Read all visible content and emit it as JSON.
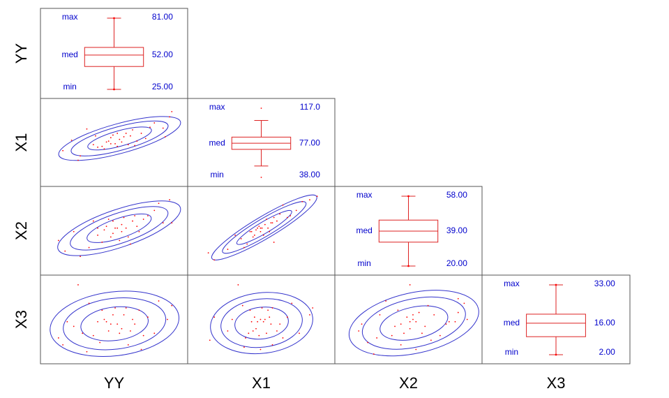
{
  "chart_data": {
    "type": "scatter",
    "layout": "lower-triangular scatterplot matrix with box plots on the diagonal",
    "variables": [
      "YY",
      "X1",
      "X2",
      "X3"
    ],
    "row_labels": [
      "YY",
      "X1",
      "X2",
      "X3"
    ],
    "column_labels": [
      "YY",
      "X1",
      "X2",
      "X3"
    ],
    "diagonal_boxplots": [
      {
        "variable": "YY",
        "max_label": "max",
        "med_label": "med",
        "min_label": "min",
        "max": "81.00",
        "median": "52.00",
        "min": "25.00",
        "q1": 43,
        "q3": 58
      },
      {
        "variable": "X1",
        "max_label": "max",
        "med_label": "med",
        "min_label": "min",
        "max": "117.0",
        "median": "77.00",
        "min": "38.00",
        "q1": 70,
        "q3": 84,
        "whisker_low": 51,
        "whisker_high": 103
      },
      {
        "variable": "X2",
        "max_label": "max",
        "med_label": "med",
        "min_label": "min",
        "max": "58.00",
        "median": "39.00",
        "min": "20.00",
        "q1": 33,
        "q3": 45
      },
      {
        "variable": "X3",
        "max_label": "max",
        "med_label": "med",
        "min_label": "min",
        "max": "33.00",
        "median": "16.00",
        "min": "2.00",
        "q1": 10,
        "q3": 20
      }
    ],
    "scatter_panels": [
      {
        "x": "YY",
        "y": "X1",
        "orientation": "positive correlation",
        "points": [
          [
            29,
            68
          ],
          [
            33,
            80
          ],
          [
            36,
            57
          ],
          [
            37,
            62
          ],
          [
            40,
            93
          ],
          [
            44,
            85
          ],
          [
            47,
            73
          ],
          [
            48,
            70
          ],
          [
            49,
            78
          ],
          [
            50,
            79
          ],
          [
            51,
            76
          ],
          [
            51,
            83
          ],
          [
            52,
            86
          ],
          [
            53,
            76
          ],
          [
            54,
            88
          ],
          [
            54,
            73
          ],
          [
            55,
            81
          ],
          [
            56,
            78
          ],
          [
            57,
            84
          ],
          [
            58,
            88
          ],
          [
            59,
            75
          ],
          [
            61,
            92
          ],
          [
            62,
            74
          ],
          [
            65,
            88
          ],
          [
            67,
            82
          ],
          [
            69,
            95
          ],
          [
            71,
            100
          ],
          [
            75,
            94
          ],
          [
            78,
            107
          ],
          [
            79,
            113
          ],
          [
            76,
            84
          ],
          [
            45,
            72
          ],
          [
            60,
            85
          ],
          [
            63,
            79
          ],
          [
            43,
            75
          ]
        ]
      },
      {
        "x": "YY",
        "y": "X2",
        "orientation": "positive correlation",
        "points": [
          [
            27,
            33
          ],
          [
            30,
            27
          ],
          [
            34,
            38
          ],
          [
            37,
            24
          ],
          [
            41,
            29
          ],
          [
            43,
            44
          ],
          [
            45,
            36
          ],
          [
            47,
            32
          ],
          [
            48,
            39
          ],
          [
            49,
            41
          ],
          [
            51,
            35
          ],
          [
            52,
            37
          ],
          [
            52,
            44
          ],
          [
            53,
            40
          ],
          [
            54,
            40
          ],
          [
            55,
            33
          ],
          [
            56,
            42
          ],
          [
            56,
            38
          ],
          [
            57,
            46
          ],
          [
            58,
            40
          ],
          [
            59,
            35
          ],
          [
            60,
            31
          ],
          [
            61,
            44
          ],
          [
            62,
            47
          ],
          [
            64,
            38
          ],
          [
            66,
            45
          ],
          [
            68,
            47
          ],
          [
            71,
            50
          ],
          [
            73,
            54
          ],
          [
            75,
            43
          ],
          [
            78,
            56
          ],
          [
            79,
            43
          ],
          [
            45,
            40
          ],
          [
            50,
            45
          ],
          [
            63,
            41
          ]
        ]
      },
      {
        "x": "YY",
        "y": "X3",
        "orientation": "weak correlation",
        "points": [
          [
            27,
            10
          ],
          [
            29,
            7
          ],
          [
            31,
            17
          ],
          [
            34,
            15
          ],
          [
            36,
            33
          ],
          [
            38,
            12
          ],
          [
            41,
            25
          ],
          [
            43,
            11
          ],
          [
            45,
            17
          ],
          [
            47,
            22
          ],
          [
            48,
            18
          ],
          [
            49,
            17
          ],
          [
            50,
            13
          ],
          [
            51,
            16
          ],
          [
            52,
            20
          ],
          [
            53,
            23
          ],
          [
            54,
            16
          ],
          [
            55,
            12
          ],
          [
            56,
            14
          ],
          [
            57,
            20
          ],
          [
            58,
            23
          ],
          [
            60,
            13
          ],
          [
            61,
            18
          ],
          [
            62,
            16
          ],
          [
            64,
            22
          ],
          [
            66,
            11
          ],
          [
            68,
            19
          ],
          [
            71,
            12
          ],
          [
            73,
            26
          ],
          [
            77,
            18
          ],
          [
            79,
            24
          ],
          [
            46,
            8
          ],
          [
            59,
            7
          ],
          [
            65,
            5
          ],
          [
            40,
            4
          ]
        ]
      },
      {
        "x": "X1",
        "y": "X2",
        "orientation": "positive correlation",
        "points": [
          [
            42,
            26
          ],
          [
            46,
            22
          ],
          [
            55,
            28
          ],
          [
            60,
            36
          ],
          [
            64,
            34
          ],
          [
            66,
            29
          ],
          [
            68,
            31
          ],
          [
            70,
            38
          ],
          [
            71,
            38
          ],
          [
            72,
            35
          ],
          [
            73,
            36
          ],
          [
            74,
            39
          ],
          [
            75,
            40
          ],
          [
            76,
            41
          ],
          [
            77,
            38
          ],
          [
            78,
            40
          ],
          [
            79,
            36
          ],
          [
            80,
            42
          ],
          [
            81,
            45
          ],
          [
            82,
            40
          ],
          [
            83,
            38
          ],
          [
            84,
            43
          ],
          [
            85,
            43
          ],
          [
            86,
            46
          ],
          [
            88,
            44
          ],
          [
            90,
            48
          ],
          [
            92,
            53
          ],
          [
            95,
            46
          ],
          [
            97,
            47
          ],
          [
            101,
            50
          ],
          [
            105,
            55
          ],
          [
            110,
            56
          ],
          [
            115,
            58
          ],
          [
            77,
            40
          ],
          [
            86,
            32
          ]
        ]
      },
      {
        "x": "X1",
        "y": "X3",
        "orientation": "weak correlation",
        "points": [
          [
            43,
            9
          ],
          [
            46,
            19
          ],
          [
            55,
            13
          ],
          [
            58,
            18
          ],
          [
            62,
            33
          ],
          [
            65,
            24
          ],
          [
            67,
            10
          ],
          [
            69,
            12
          ],
          [
            70,
            22
          ],
          [
            71,
            17
          ],
          [
            72,
            13
          ],
          [
            73,
            19
          ],
          [
            74,
            14
          ],
          [
            75,
            17
          ],
          [
            76,
            11
          ],
          [
            77,
            18
          ],
          [
            78,
            23
          ],
          [
            79,
            17
          ],
          [
            80,
            18
          ],
          [
            81,
            12
          ],
          [
            82,
            22
          ],
          [
            83,
            19
          ],
          [
            84,
            16
          ],
          [
            85,
            23
          ],
          [
            88,
            13
          ],
          [
            90,
            16
          ],
          [
            92,
            10
          ],
          [
            95,
            19
          ],
          [
            98,
            25
          ],
          [
            103,
            12
          ],
          [
            110,
            20
          ],
          [
            112,
            23
          ],
          [
            77,
            5
          ],
          [
            85,
            7
          ],
          [
            66,
            6
          ]
        ]
      },
      {
        "x": "X2",
        "y": "X3",
        "orientation": "weak correlation",
        "points": [
          [
            22,
            13
          ],
          [
            23,
            16
          ],
          [
            25,
            8
          ],
          [
            28,
            10
          ],
          [
            29,
            20
          ],
          [
            31,
            26
          ],
          [
            33,
            11
          ],
          [
            34,
            15
          ],
          [
            35,
            22
          ],
          [
            36,
            16
          ],
          [
            37,
            12
          ],
          [
            38,
            19
          ],
          [
            39,
            17
          ],
          [
            39,
            14
          ],
          [
            40,
            18
          ],
          [
            40,
            20
          ],
          [
            41,
            17
          ],
          [
            42,
            21
          ],
          [
            43,
            12
          ],
          [
            44,
            15
          ],
          [
            45,
            24
          ],
          [
            46,
            9
          ],
          [
            47,
            20
          ],
          [
            49,
            11
          ],
          [
            51,
            16
          ],
          [
            52,
            17
          ],
          [
            54,
            17
          ],
          [
            55,
            21
          ],
          [
            55,
            27
          ],
          [
            57,
            25
          ],
          [
            58,
            18
          ],
          [
            39,
            33
          ],
          [
            36,
            7
          ],
          [
            41,
            5
          ],
          [
            27,
            3
          ]
        ]
      }
    ],
    "ellipse_levels": 3,
    "colors": {
      "points": "#ff0000",
      "ellipses": "#3333cc",
      "boxplot": "#dd2222",
      "stat_text": "#0000cc",
      "frame": "#555555"
    }
  }
}
